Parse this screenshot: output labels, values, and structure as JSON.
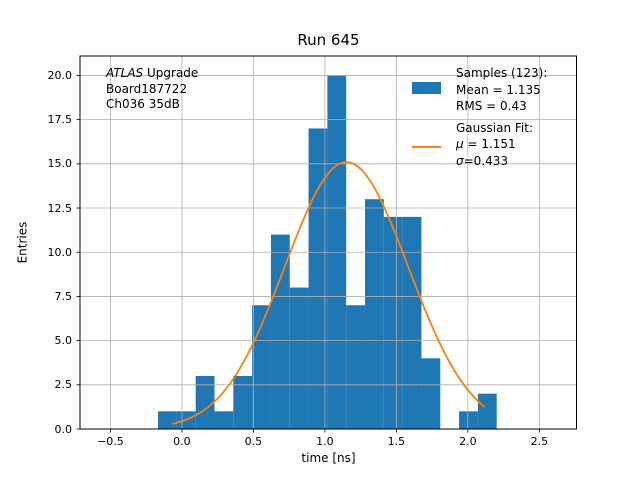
{
  "chart_data": {
    "type": "bar",
    "title": "Run 645",
    "xlabel": "time [ns]",
    "ylabel": "Entries",
    "xlim": [
      -0.713,
      2.76
    ],
    "ylim": [
      0,
      21.1
    ],
    "grid": true,
    "legend_position": "upper right",
    "xticks": {
      "values": [
        -0.5,
        0.0,
        0.5,
        1.0,
        1.5,
        2.0,
        2.5
      ],
      "labels": [
        "−0.5",
        "0.0",
        "0.5",
        "1.0",
        "1.5",
        "2.0",
        "2.5"
      ]
    },
    "yticks": {
      "values": [
        0.0,
        2.5,
        5.0,
        7.5,
        10.0,
        12.5,
        15.0,
        17.5,
        20.0
      ],
      "labels": [
        "0.0",
        "2.5",
        "5.0",
        "7.5",
        "10.0",
        "12.5",
        "15.0",
        "17.5",
        "20.0"
      ]
    },
    "histogram": {
      "label": "Samples",
      "n_entries": 123,
      "mean": 1.135,
      "rms": 0.43,
      "bin_start": -0.167,
      "bin_width": 0.1316,
      "counts": [
        1,
        1,
        3,
        1,
        3,
        7,
        11,
        8,
        17,
        20,
        7,
        13,
        12,
        12,
        4,
        0,
        1,
        2
      ]
    },
    "gaussian": {
      "label": "Gaussian Fit",
      "mu": 1.151,
      "sigma": 0.433,
      "amplitude": 15.1,
      "x_min": -0.07,
      "x_max": 2.12
    },
    "colors": {
      "bar": "#1f77b4",
      "curve": "#ff7f0e",
      "grid": "#b0b0b0",
      "spine": "#000000"
    }
  },
  "annotation": {
    "brand": "ATLAS",
    "brand_rest": " Upgrade",
    "line2": "Board187722",
    "line3": "Ch036 35dB"
  },
  "legend": {
    "rows": [
      {
        "text": "Samples (123):"
      },
      {
        "handle": "patch",
        "text": "Mean = 1.135"
      },
      {
        "text": "RMS = 0.43"
      },
      {
        "text": "Gaussian Fit:"
      },
      {
        "handle": "line",
        "sym": "μ",
        "text": " = 1.151"
      },
      {
        "sym": "σ",
        "text": "=0.433"
      }
    ]
  }
}
